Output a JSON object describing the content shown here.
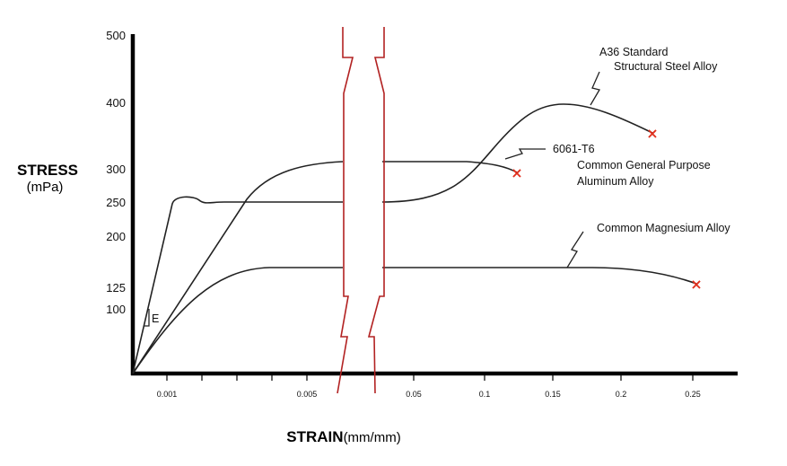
{
  "chart_data": {
    "type": "line",
    "title": "",
    "ylabel": {
      "main": "STRESS",
      "unit": "(mPa)"
    },
    "xlabel": {
      "main": "STRAIN",
      "unit": "(mm/mm)"
    },
    "yticks": [
      "500",
      "400",
      "300",
      "250",
      "200",
      "125",
      "100"
    ],
    "ytick_values": [
      500,
      400,
      300,
      250,
      200,
      125,
      100
    ],
    "xticks": [
      "0.001",
      "0.005",
      "0.05",
      "0.1",
      "0.15",
      "0.2",
      "0.25"
    ],
    "axis_break": "between 0.005 and 0.05",
    "modulus_label": "E",
    "series": [
      {
        "name": "A36 Standard Structural Steel Alloy",
        "label_lines": [
          "A36 Standard",
          "Structural Steel Alloy"
        ],
        "points": [
          [
            0,
            0
          ],
          [
            0.0012,
            255
          ],
          [
            0.0015,
            260
          ],
          [
            0.002,
            252
          ],
          [
            0.005,
            250
          ],
          [
            0.05,
            250
          ],
          [
            0.1,
            318
          ],
          [
            0.15,
            398
          ],
          [
            0.22,
            358
          ]
        ],
        "fracture": true
      },
      {
        "name": "6061-T6 Common General Purpose Aluminum Alloy",
        "label_lines": [
          "6061-T6",
          "Common General Purpose",
          "Aluminum Alloy"
        ],
        "points": [
          [
            0,
            0
          ],
          [
            0.003,
            248
          ],
          [
            0.005,
            310
          ],
          [
            0.05,
            310
          ],
          [
            0.1,
            305
          ],
          [
            0.125,
            295
          ]
        ],
        "fracture": true
      },
      {
        "name": "Common Magnesium Alloy",
        "label_lines": [
          "Common Magnesium Alloy"
        ],
        "points": [
          [
            0,
            0
          ],
          [
            0.003,
            155
          ],
          [
            0.005,
            160
          ],
          [
            0.05,
            160
          ],
          [
            0.15,
            160
          ],
          [
            0.25,
            140
          ]
        ],
        "fracture": true
      }
    ],
    "fracture_marker": "×",
    "colors": {
      "break": "#b22222",
      "fracture": "#e0301e",
      "curve": "#222222"
    }
  }
}
